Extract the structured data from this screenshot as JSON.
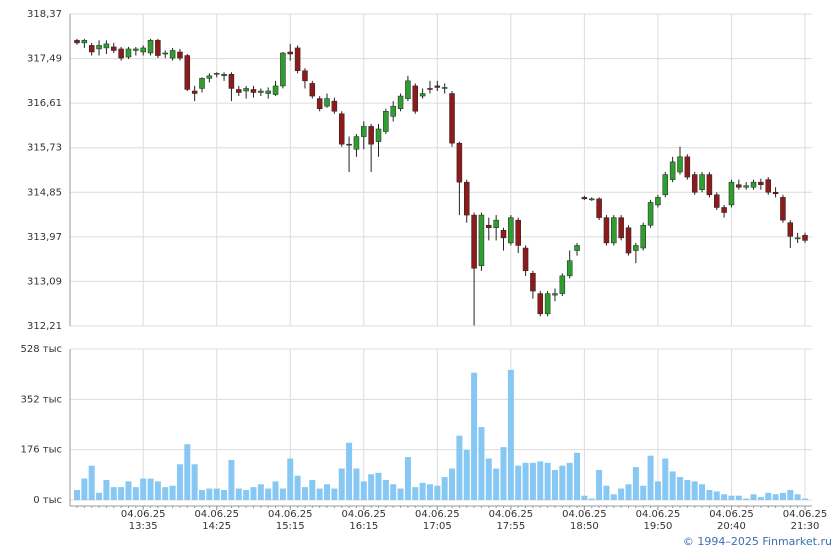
{
  "chart_data": {
    "type": "candlestick",
    "categories": [
      null,
      null,
      null,
      null,
      null,
      null,
      null,
      null,
      null,
      [
        "04.06.25",
        "13:35"
      ],
      null,
      null,
      null,
      null,
      null,
      null,
      null,
      null,
      null,
      [
        "04.06.25",
        "14:25"
      ],
      null,
      null,
      null,
      null,
      null,
      null,
      null,
      null,
      null,
      [
        "04.06.25",
        "15:15"
      ],
      null,
      null,
      null,
      null,
      null,
      null,
      null,
      null,
      null,
      [
        "04.06.25",
        "16:15"
      ],
      null,
      null,
      null,
      null,
      null,
      null,
      null,
      null,
      null,
      [
        "04.06.25",
        "17:05"
      ],
      null,
      null,
      null,
      null,
      null,
      null,
      null,
      null,
      null,
      [
        "04.06.25",
        "17:55"
      ],
      null,
      null,
      null,
      null,
      null,
      null,
      null,
      null,
      null,
      [
        "04.06.25",
        "18:50"
      ],
      null,
      null,
      null,
      null,
      null,
      null,
      null,
      null,
      null,
      [
        "04.06.25",
        "19:50"
      ],
      null,
      null,
      null,
      null,
      null,
      null,
      null,
      null,
      null,
      [
        "04.06.25",
        "20:40"
      ],
      null,
      null,
      null,
      null,
      null,
      null,
      null,
      null,
      null,
      [
        "04.06.25",
        "21:30"
      ]
    ],
    "open": [
      317.85,
      317.8,
      317.75,
      317.68,
      317.7,
      317.72,
      317.68,
      317.52,
      317.65,
      317.62,
      317.6,
      317.85,
      317.58,
      317.5,
      317.62,
      317.55,
      316.85,
      316.9,
      317.1,
      317.18,
      317.15,
      317.18,
      316.88,
      316.85,
      316.88,
      316.82,
      316.8,
      316.78,
      316.95,
      317.62,
      317.7,
      317.25,
      317.0,
      316.7,
      316.55,
      316.65,
      316.4,
      315.8,
      315.7,
      315.95,
      316.15,
      315.85,
      316.05,
      316.35,
      316.5,
      316.7,
      316.95,
      316.75,
      316.9,
      316.95,
      316.9,
      316.8,
      315.82,
      315.05,
      314.4,
      313.4,
      314.2,
      314.15,
      314.1,
      313.85,
      314.3,
      313.75,
      313.25,
      312.85,
      312.45,
      312.82,
      312.85,
      313.2,
      313.7,
      314.75,
      314.72,
      314.72,
      314.35,
      313.85,
      314.35,
      314.15,
      313.7,
      313.75,
      314.2,
      314.6,
      314.8,
      315.1,
      315.25,
      315.55,
      315.2,
      314.9,
      315.2,
      314.8,
      314.55,
      314.6,
      315.0,
      314.95,
      314.95,
      315.05,
      315.1,
      314.85,
      314.75,
      314.25,
      313.95,
      314.0
    ],
    "high": [
      317.88,
      317.88,
      317.8,
      317.85,
      317.85,
      317.8,
      317.72,
      317.72,
      317.72,
      317.75,
      317.88,
      317.88,
      317.65,
      317.7,
      317.68,
      317.58,
      316.95,
      317.12,
      317.2,
      317.22,
      317.22,
      317.22,
      316.95,
      316.95,
      316.95,
      316.9,
      316.92,
      317.05,
      317.62,
      317.78,
      317.75,
      317.3,
      317.05,
      316.75,
      316.8,
      316.72,
      316.45,
      315.95,
      316.0,
      316.25,
      316.2,
      316.2,
      316.5,
      316.65,
      316.8,
      317.15,
      317.0,
      316.9,
      317.05,
      317.05,
      317.0,
      316.85,
      315.85,
      315.1,
      314.45,
      314.45,
      314.35,
      314.4,
      314.15,
      314.4,
      314.35,
      313.8,
      313.3,
      312.9,
      312.9,
      312.95,
      313.25,
      313.7,
      313.85,
      314.78,
      314.75,
      314.75,
      314.4,
      314.4,
      314.4,
      314.2,
      313.85,
      314.25,
      314.7,
      314.8,
      315.25,
      315.55,
      315.75,
      315.6,
      315.25,
      315.25,
      315.25,
      314.85,
      314.6,
      315.1,
      315.1,
      315.05,
      315.1,
      315.12,
      315.15,
      314.95,
      314.8,
      314.3,
      314.05,
      314.05
    ],
    "low": [
      317.76,
      317.7,
      317.55,
      317.55,
      317.58,
      317.6,
      317.45,
      317.48,
      317.55,
      317.55,
      317.55,
      317.5,
      317.5,
      317.45,
      317.45,
      316.85,
      316.65,
      316.82,
      317.02,
      317.12,
      317.05,
      316.65,
      316.75,
      316.7,
      316.72,
      316.75,
      316.7,
      316.75,
      316.9,
      317.45,
      317.2,
      316.9,
      316.7,
      316.45,
      316.52,
      316.4,
      315.75,
      315.25,
      315.55,
      315.7,
      315.25,
      315.55,
      316.0,
      316.25,
      316.45,
      316.65,
      316.4,
      316.7,
      316.8,
      316.85,
      316.8,
      315.75,
      314.4,
      314.25,
      312.22,
      313.3,
      313.9,
      313.9,
      313.7,
      313.8,
      313.65,
      313.2,
      312.75,
      312.4,
      312.4,
      312.7,
      312.8,
      313.15,
      313.6,
      314.7,
      314.68,
      314.3,
      313.8,
      313.8,
      313.9,
      313.6,
      313.45,
      313.7,
      314.15,
      314.55,
      314.75,
      315.05,
      315.2,
      315.1,
      314.8,
      314.85,
      314.75,
      314.5,
      314.35,
      314.55,
      314.9,
      314.9,
      314.9,
      314.9,
      314.8,
      314.75,
      314.25,
      313.75,
      313.85,
      313.85
    ],
    "close": [
      317.8,
      317.85,
      317.62,
      317.75,
      317.78,
      317.65,
      317.5,
      317.68,
      317.68,
      317.7,
      317.85,
      317.55,
      317.6,
      317.65,
      317.5,
      316.88,
      316.8,
      317.1,
      317.15,
      317.2,
      317.18,
      316.9,
      316.82,
      316.9,
      316.82,
      316.85,
      316.85,
      316.95,
      317.6,
      317.58,
      317.25,
      317.05,
      316.75,
      316.5,
      316.7,
      316.45,
      315.8,
      315.78,
      315.95,
      316.15,
      315.8,
      316.1,
      316.45,
      316.55,
      316.75,
      317.05,
      316.45,
      316.8,
      316.88,
      316.92,
      316.92,
      315.82,
      315.05,
      314.4,
      313.35,
      314.4,
      314.15,
      314.3,
      313.95,
      314.35,
      313.8,
      313.3,
      312.9,
      312.45,
      312.85,
      312.85,
      313.2,
      313.5,
      313.8,
      314.72,
      314.72,
      314.35,
      313.85,
      314.35,
      313.95,
      313.65,
      313.8,
      314.2,
      314.65,
      314.75,
      315.2,
      315.45,
      315.55,
      315.15,
      314.85,
      315.2,
      314.8,
      314.55,
      314.45,
      315.05,
      314.95,
      314.98,
      315.05,
      315.0,
      314.85,
      314.82,
      314.3,
      313.98,
      313.95,
      313.9
    ],
    "up_color": "#2f9e2f",
    "down_color": "#8e1b1b",
    "ylim": [
      312.21,
      318.37
    ],
    "yticks": [
      {
        "value": 318.37,
        "label": "318,37"
      },
      {
        "value": 317.49,
        "label": "317,49"
      },
      {
        "value": 316.61,
        "label": "316,61"
      },
      {
        "value": 315.73,
        "label": "315,73"
      },
      {
        "value": 314.85,
        "label": "314,85"
      },
      {
        "value": 313.97,
        "label": "313,97"
      },
      {
        "value": 313.09,
        "label": "313,09"
      },
      {
        "value": 312.21,
        "label": "312,21"
      }
    ],
    "grid": true,
    "volume": {
      "color": "#86c8f3",
      "values": [
        35,
        75,
        120,
        25,
        70,
        45,
        45,
        65,
        45,
        75,
        75,
        65,
        45,
        50,
        125,
        195,
        125,
        35,
        40,
        40,
        35,
        140,
        40,
        35,
        45,
        55,
        40,
        65,
        40,
        145,
        85,
        45,
        70,
        40,
        55,
        40,
        110,
        200,
        110,
        65,
        90,
        95,
        70,
        55,
        40,
        150,
        45,
        60,
        55,
        50,
        80,
        110,
        225,
        175,
        445,
        255,
        145,
        110,
        185,
        455,
        120,
        130,
        130,
        135,
        130,
        105,
        120,
        130,
        165,
        15,
        5,
        105,
        50,
        20,
        40,
        55,
        115,
        50,
        155,
        65,
        145,
        100,
        80,
        70,
        65,
        55,
        35,
        30,
        20,
        15,
        15,
        5,
        20,
        10,
        25,
        20,
        25,
        35,
        20,
        5
      ],
      "ylim": [
        0,
        528
      ],
      "yticks": [
        {
          "value": 528,
          "label": "528 тыс"
        },
        {
          "value": 352,
          "label": "352 тыс"
        },
        {
          "value": 176,
          "label": "176 тыс"
        },
        {
          "value": 0,
          "label": "0 тыс"
        }
      ]
    }
  },
  "footer": {
    "text": "© 1994–2025 Finmarket.ru"
  }
}
